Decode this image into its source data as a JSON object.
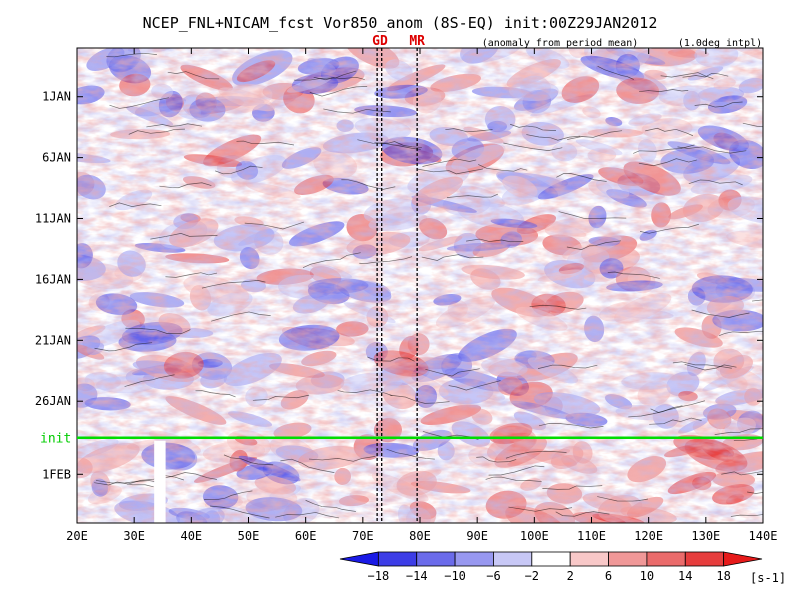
{
  "chart_data": {
    "type": "heatmap",
    "title": "NCEP_FNL+NICAM_fcst Vor850_anom (8S-EQ) init:00Z29JAN2012",
    "subtitle_left": "(anomaly from period mean)",
    "subtitle_right": "(1.0deg intpl)",
    "x_axis": {
      "ticks": [
        "20E",
        "30E",
        "40E",
        "50E",
        "60E",
        "70E",
        "80E",
        "90E",
        "100E",
        "110E",
        "120E",
        "130E",
        "140E"
      ],
      "range": [
        20,
        140
      ]
    },
    "y_axis": {
      "ticks": [
        "1JAN",
        "6JAN",
        "11JAN",
        "16JAN",
        "21JAN",
        "26JAN",
        "1FEB"
      ],
      "range": [
        "28DEC2011",
        "5FEB2012"
      ]
    },
    "annotations": {
      "init_label": "init",
      "init_date": "29JAN2012",
      "station_labels": [
        {
          "text": "GD",
          "lon": 73,
          "color": "#dd0000"
        },
        {
          "text": "MR",
          "lon": 79.5,
          "color": "#dd0000"
        }
      ],
      "station_line_lons": [
        72.5,
        73.3,
        79.5
      ],
      "missing_band_lon": [
        33.5,
        35.5
      ],
      "missing_band_date_start": "29JAN2012"
    },
    "colorbar": {
      "labels": [
        "-18",
        "-14",
        "-10",
        "-6",
        "-2",
        "2",
        "6",
        "10",
        "14",
        "18"
      ],
      "unit": "[s-1]",
      "colors": [
        "#1a1ae6",
        "#3d3de6",
        "#6b6bea",
        "#9898f0",
        "#c8c8f6",
        "#ffffff",
        "#f8c8c8",
        "#f09898",
        "#ea6b6b",
        "#e63d3d",
        "#e61a1a"
      ]
    }
  }
}
